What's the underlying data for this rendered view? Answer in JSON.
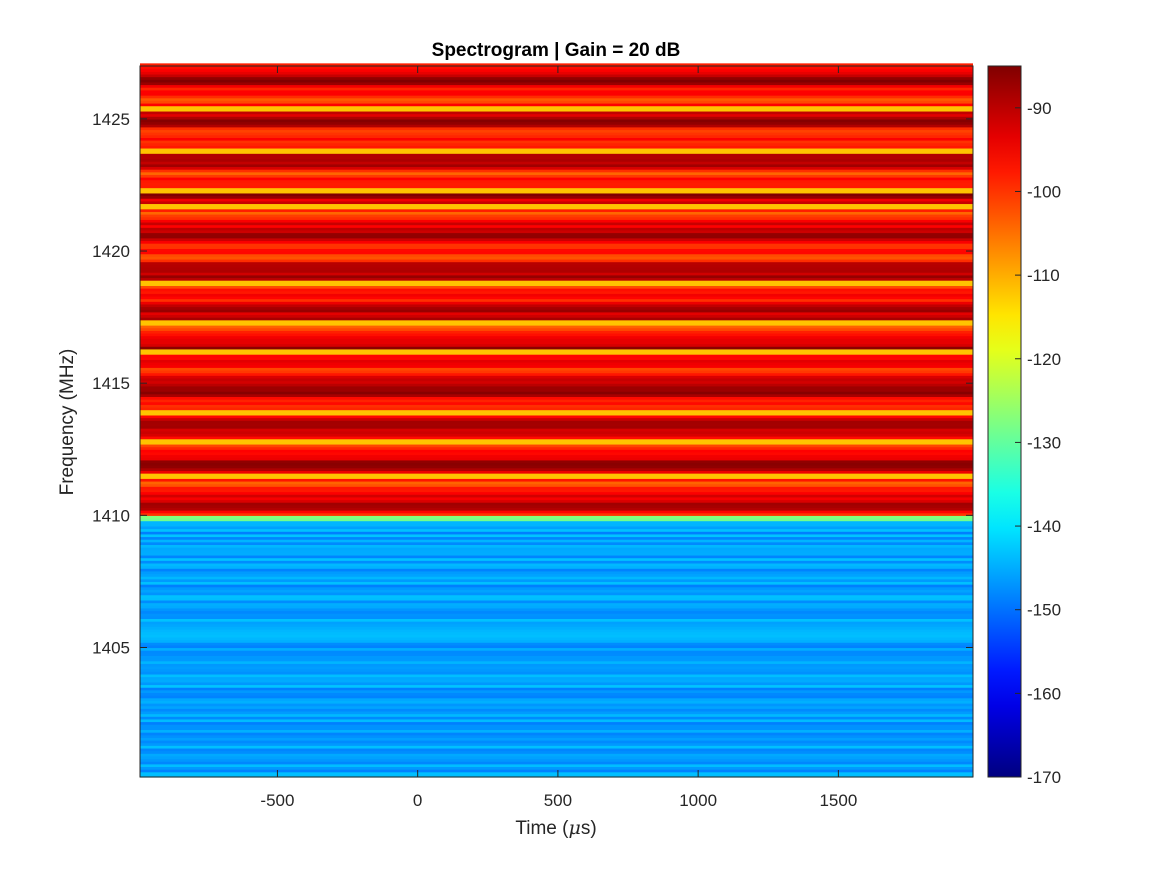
{
  "chart_data": {
    "type": "heatmap",
    "title": "Spectrogram | Gain = 20 dB",
    "xlabel": "Time (",
    "xlabel_mu": "μ",
    "xlabel_suffix": "s)",
    "ylabel": "Frequency (MHz)",
    "xlim": [
      -990,
      1980
    ],
    "ylim": [
      1400.1,
      1427.0
    ],
    "xticks": [
      -500,
      0,
      500,
      1000,
      1500
    ],
    "yticks": [
      1405,
      1410,
      1415,
      1420,
      1425
    ],
    "colorbar": {
      "clim": [
        -170,
        -85
      ],
      "ticks": [
        -90,
        -100,
        -110,
        -120,
        -130,
        -140,
        -150,
        -160,
        -170
      ],
      "colormap": "jet"
    },
    "bands": [
      {
        "f_start": 1400.1,
        "f_end": 1409.8,
        "mean_db": -146
      },
      {
        "f_start": 1409.8,
        "f_end": 1410.0,
        "mean_db": -127
      },
      {
        "f_start": 1410.0,
        "f_end": 1427.0,
        "mean_db": -94
      }
    ],
    "bright_lines_mhz": [
      1411.5,
      1412.8,
      1413.9,
      1416.2,
      1417.3,
      1418.8,
      1421.7,
      1422.3,
      1423.8,
      1425.4
    ]
  }
}
